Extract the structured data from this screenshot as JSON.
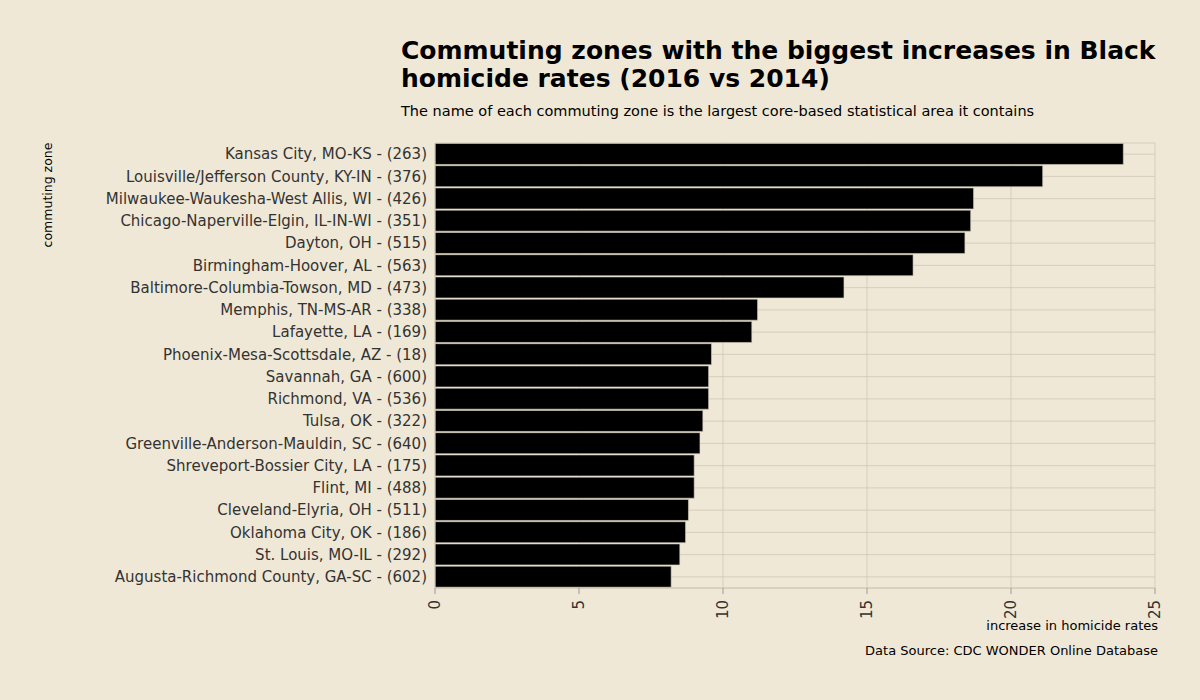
{
  "chart_data": {
    "type": "bar",
    "orientation": "horizontal",
    "title": "Commuting zones with the biggest increases in Black homicide rates (2016 vs 2014)",
    "subtitle": "The name of each commuting zone is the largest core-based statistical area it contains",
    "x_label": "increase in homicide rates",
    "y_label": "commuting zone",
    "source": "Data Source: CDC WONDER Online Database",
    "categories": [
      "Kansas City, MO-KS - (263)",
      "Louisville/Jefferson County, KY-IN - (376)",
      "Milwaukee-Waukesha-West Allis, WI - (426)",
      "Chicago-Naperville-Elgin, IL-IN-WI - (351)",
      "Dayton, OH - (515)",
      "Birmingham-Hoover, AL - (563)",
      "Baltimore-Columbia-Towson, MD - (473)",
      "Memphis, TN-MS-AR - (338)",
      "Lafayette, LA - (169)",
      "Phoenix-Mesa-Scottsdale, AZ - (18)",
      "Savannah, GA - (600)",
      "Richmond, VA - (536)",
      "Tulsa, OK - (322)",
      "Greenville-Anderson-Mauldin, SC - (640)",
      "Shreveport-Bossier City, LA - (175)",
      "Flint, MI - (488)",
      "Cleveland-Elyria, OH - (511)",
      "Oklahoma City, OK - (186)",
      "St. Louis, MO-IL - (292)",
      "Augusta-Richmond County, GA-SC - (602)"
    ],
    "values": [
      23.9,
      21.1,
      18.7,
      18.6,
      18.4,
      16.6,
      14.2,
      11.2,
      11.0,
      9.6,
      9.5,
      9.5,
      9.3,
      9.2,
      9.0,
      9.0,
      8.8,
      8.7,
      8.5,
      8.2
    ],
    "color": "#000000",
    "xlim": [
      0,
      25
    ],
    "xticks": [
      0,
      5,
      10,
      15,
      20,
      25
    ],
    "grid": true
  }
}
